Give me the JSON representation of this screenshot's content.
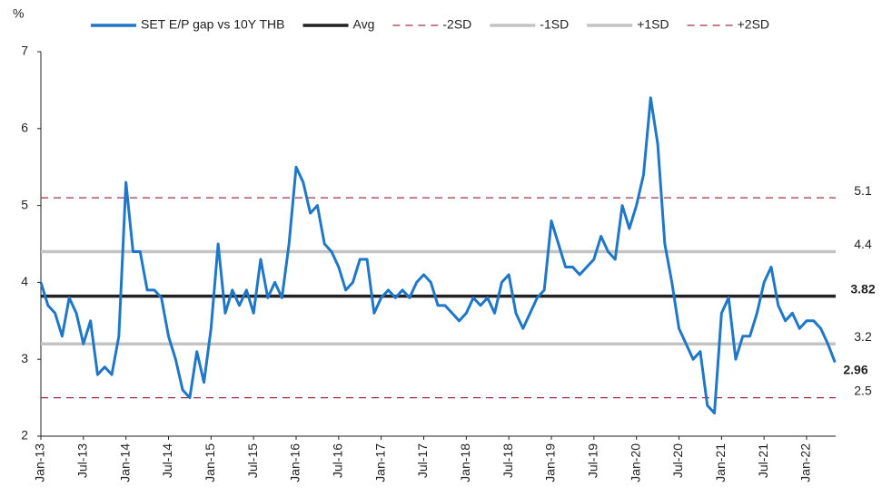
{
  "chart_data": {
    "type": "line",
    "y_label": "%",
    "categories": [
      "Jan-13",
      null,
      null,
      null,
      null,
      null,
      "Jul-13",
      null,
      null,
      null,
      null,
      null,
      "Jan-14",
      null,
      null,
      null,
      null,
      null,
      "Jul-14",
      null,
      null,
      null,
      null,
      null,
      "Jan-15",
      null,
      null,
      null,
      null,
      null,
      "Jul-15",
      null,
      null,
      null,
      null,
      null,
      "Jan-16",
      null,
      null,
      null,
      null,
      null,
      "Jul-16",
      null,
      null,
      null,
      null,
      null,
      "Jan-17",
      null,
      null,
      null,
      null,
      null,
      "Jul-17",
      null,
      null,
      null,
      null,
      null,
      "Jan-18",
      null,
      null,
      null,
      null,
      null,
      "Jul-18",
      null,
      null,
      null,
      null,
      null,
      "Jan-19",
      null,
      null,
      null,
      null,
      null,
      "Jul-19",
      null,
      null,
      null,
      null,
      null,
      "Jan-20",
      null,
      null,
      null,
      null,
      null,
      "Jul-20",
      null,
      null,
      null,
      null,
      null,
      "Jan-21",
      null,
      null,
      null,
      null,
      null,
      "Jul-21",
      null,
      null,
      null,
      null,
      null,
      "Jan-22",
      null,
      null,
      null,
      null
    ],
    "series": [
      {
        "name": "SET E/P gap vs 10Y THB",
        "color": "#1f77c9",
        "values": [
          4.0,
          3.7,
          3.6,
          3.3,
          3.8,
          3.6,
          3.2,
          3.5,
          2.8,
          2.9,
          2.8,
          3.3,
          5.3,
          4.4,
          4.4,
          3.9,
          3.9,
          3.8,
          3.3,
          3.0,
          2.6,
          2.5,
          3.1,
          2.7,
          3.4,
          4.5,
          3.6,
          3.9,
          3.7,
          3.9,
          3.6,
          4.3,
          3.8,
          4.0,
          3.8,
          4.5,
          5.5,
          5.3,
          4.9,
          5.0,
          4.5,
          4.4,
          4.2,
          3.9,
          4.0,
          4.3,
          4.3,
          3.6,
          3.8,
          3.9,
          3.8,
          3.9,
          3.8,
          4.0,
          4.1,
          4.0,
          3.7,
          3.7,
          3.6,
          3.5,
          3.6,
          3.8,
          3.7,
          3.8,
          3.6,
          4.0,
          4.1,
          3.6,
          3.4,
          3.6,
          3.8,
          3.9,
          4.8,
          4.5,
          4.2,
          4.2,
          4.1,
          4.2,
          4.3,
          4.6,
          4.4,
          4.3,
          5.0,
          4.7,
          5.0,
          5.4,
          6.4,
          5.8,
          4.5,
          4.0,
          3.4,
          3.2,
          3.0,
          3.1,
          2.4,
          2.3,
          3.6,
          3.8,
          3.0,
          3.3,
          3.3,
          3.6,
          4.0,
          4.2,
          3.7,
          3.5,
          3.6,
          3.4,
          3.5,
          3.5,
          3.4,
          3.2,
          2.96
        ]
      }
    ],
    "ref_lines": [
      {
        "name": "Avg",
        "value": 3.82,
        "color": "#222222",
        "style": "solid"
      },
      {
        "name": "-2SD",
        "value": 2.5,
        "color": "#a0304a",
        "style": "dashed"
      },
      {
        "name": "-1SD",
        "value": 3.2,
        "color": "#c4c4c4",
        "style": "solid"
      },
      {
        "name": "+1SD",
        "value": 4.4,
        "color": "#c4c4c4",
        "style": "solid"
      },
      {
        "name": "+2SD",
        "value": 5.1,
        "color": "#a0304a",
        "style": "dashed"
      }
    ],
    "ylim": [
      2,
      7
    ],
    "yticks": [
      2,
      3,
      4,
      5,
      6,
      7
    ],
    "grid": false
  }
}
